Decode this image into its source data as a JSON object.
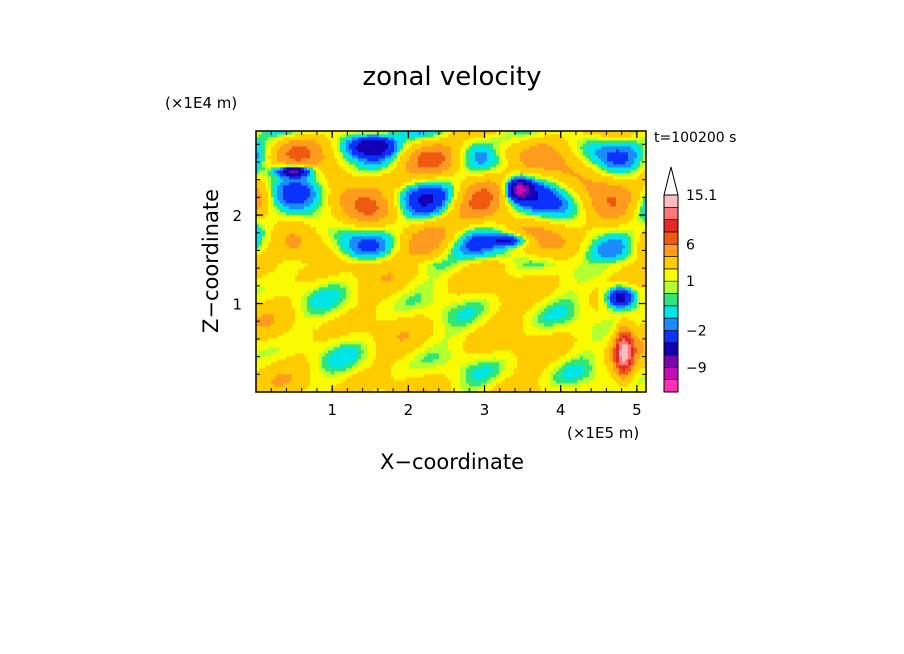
{
  "chart_data": {
    "type": "heatmap",
    "title": "zonal velocity",
    "xlabel": "X−coordinate",
    "ylabel": "Z−coordinate",
    "x_unit": "(×1E5 m)",
    "y_unit": "(×1E4 m)",
    "time_label": "t=100200 s",
    "xlim": [
      0,
      5.12
    ],
    "ylim": [
      0,
      2.95
    ],
    "x_ticks": [
      "1",
      "2",
      "3",
      "4",
      "5"
    ],
    "y_ticks": [
      "1",
      "2"
    ],
    "colorbar": {
      "levels": [
        -13,
        -11,
        -9,
        -7,
        -4,
        -2,
        -1,
        0,
        0.5,
        1,
        2,
        4,
        6,
        8,
        10,
        12,
        15.1
      ],
      "tick_labels": [
        "15.1",
        "6",
        "1",
        "−2",
        "−9"
      ],
      "colors": [
        "#ff2fb4",
        "#c40db4",
        "#7a08a8",
        "#1400b4",
        "#0a32ff",
        "#1a8cff",
        "#00e6e6",
        "#30e678",
        "#b4ff2f",
        "#fafa00",
        "#ffcc00",
        "#ff9c1e",
        "#f05a10",
        "#e62828",
        "#ff7878",
        "#ffbebe"
      ],
      "extend": "max"
    }
  }
}
